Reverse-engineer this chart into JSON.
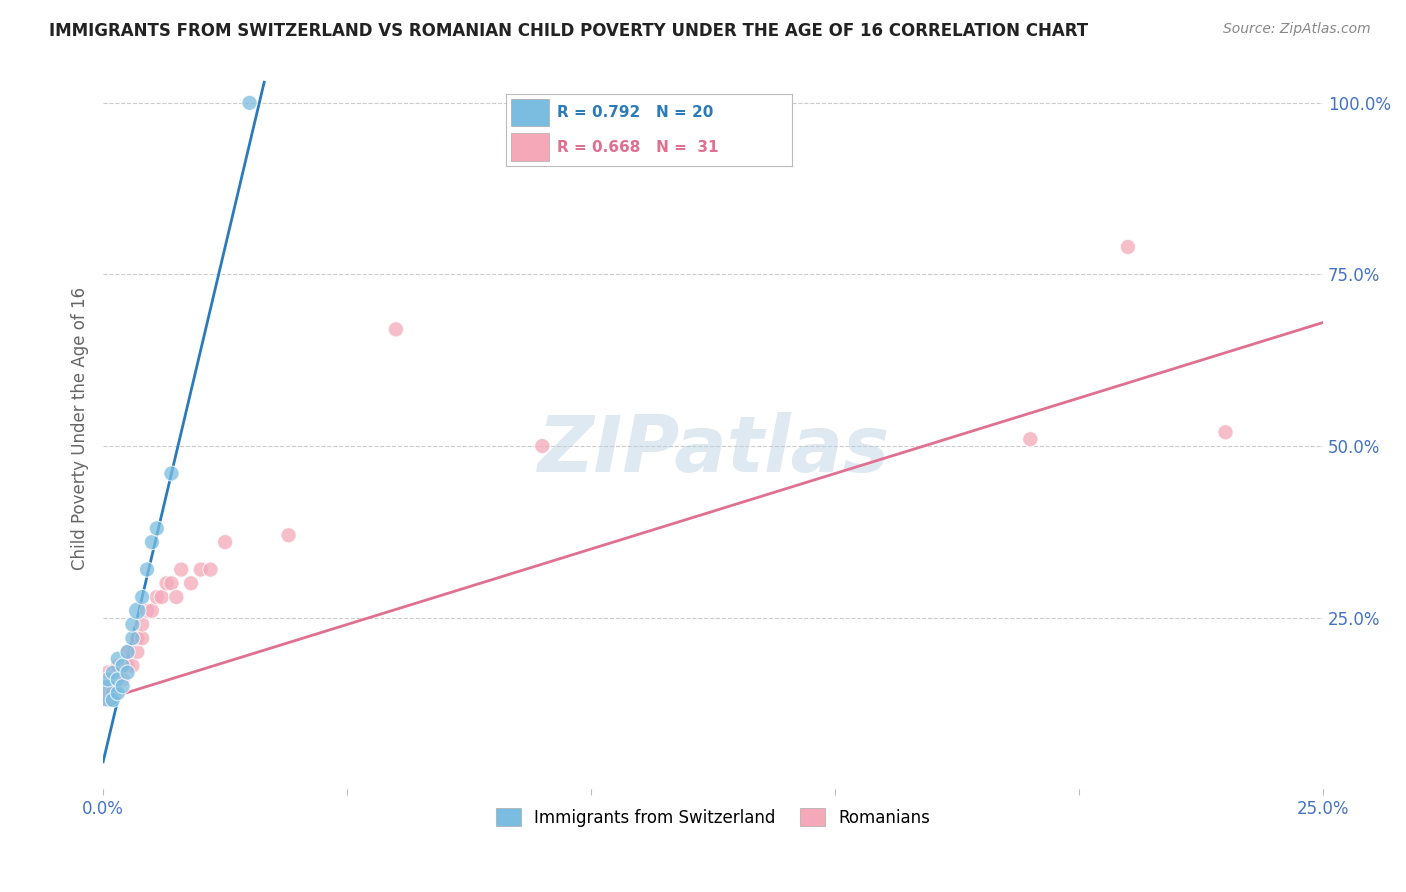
{
  "title": "IMMIGRANTS FROM SWITZERLAND VS ROMANIAN CHILD POVERTY UNDER THE AGE OF 16 CORRELATION CHART",
  "source": "Source: ZipAtlas.com",
  "ylabel": "Child Poverty Under the Age of 16",
  "x_min": 0.0,
  "x_max": 0.25,
  "y_min": 0.0,
  "y_max": 1.05,
  "x_ticks": [
    0.0,
    0.05,
    0.1,
    0.15,
    0.2,
    0.25
  ],
  "x_tick_labels": [
    "0.0%",
    "",
    "",
    "",
    "",
    "25.0%"
  ],
  "y_ticks_right": [
    0.0,
    0.25,
    0.5,
    0.75,
    1.0
  ],
  "y_tick_labels_right": [
    "",
    "25.0%",
    "50.0%",
    "75.0%",
    "100.0%"
  ],
  "legend_label_blue": "Immigrants from Switzerland",
  "legend_label_pink": "Romanians",
  "watermark": "ZIPatlas",
  "blue_color": "#7bbde0",
  "pink_color": "#f4a8b8",
  "blue_line_color": "#2b7bba",
  "pink_line_color": "#e07090",
  "axis_label_color": "#4472c4",
  "grid_color": "#cccccc",
  "swiss_x": [
    0.001,
    0.001,
    0.002,
    0.002,
    0.003,
    0.003,
    0.003,
    0.004,
    0.004,
    0.005,
    0.005,
    0.006,
    0.006,
    0.007,
    0.008,
    0.009,
    0.01,
    0.011,
    0.014,
    0.03
  ],
  "swiss_y": [
    0.14,
    0.16,
    0.13,
    0.17,
    0.14,
    0.16,
    0.19,
    0.15,
    0.18,
    0.17,
    0.2,
    0.22,
    0.24,
    0.26,
    0.28,
    0.32,
    0.36,
    0.38,
    0.46,
    1.0
  ],
  "swiss_sizes": [
    400,
    120,
    120,
    120,
    120,
    120,
    120,
    120,
    120,
    120,
    120,
    120,
    120,
    160,
    120,
    120,
    120,
    120,
    120,
    120
  ],
  "romanian_x": [
    0.001,
    0.001,
    0.002,
    0.003,
    0.003,
    0.004,
    0.005,
    0.005,
    0.006,
    0.007,
    0.007,
    0.008,
    0.008,
    0.009,
    0.01,
    0.011,
    0.012,
    0.013,
    0.014,
    0.015,
    0.016,
    0.018,
    0.02,
    0.022,
    0.025,
    0.038,
    0.06,
    0.09,
    0.19,
    0.21,
    0.23
  ],
  "romanian_y": [
    0.14,
    0.17,
    0.14,
    0.16,
    0.18,
    0.16,
    0.18,
    0.2,
    0.18,
    0.2,
    0.22,
    0.22,
    0.24,
    0.26,
    0.26,
    0.28,
    0.28,
    0.3,
    0.3,
    0.28,
    0.32,
    0.3,
    0.32,
    0.32,
    0.36,
    0.37,
    0.67,
    0.5,
    0.51,
    0.79,
    0.52
  ],
  "romanian_sizes": [
    400,
    120,
    120,
    120,
    120,
    120,
    120,
    120,
    120,
    120,
    120,
    120,
    120,
    120,
    120,
    120,
    120,
    120,
    120,
    120,
    120,
    120,
    120,
    120,
    120,
    120,
    120,
    120,
    120,
    120,
    120
  ],
  "blue_line_x": [
    0.0,
    0.033
  ],
  "blue_line_y": [
    0.04,
    1.03
  ],
  "pink_line_x": [
    0.0,
    0.25
  ],
  "pink_line_y": [
    0.13,
    0.68
  ]
}
